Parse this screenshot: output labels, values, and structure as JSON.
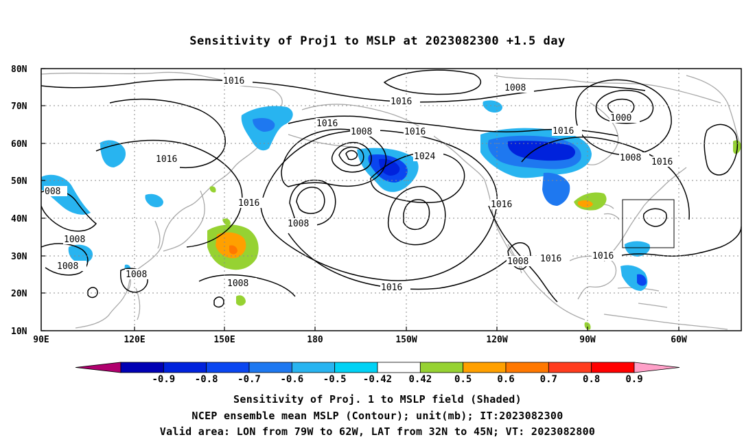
{
  "title": "Sensitivity of Proj1 to MSLP at 2023082300 +1.5 day",
  "map": {
    "lat_labels": [
      "80N",
      "70N",
      "60N",
      "50N",
      "40N",
      "30N",
      "20N",
      "10N"
    ],
    "lon_labels": [
      "90E",
      "120E",
      "150E",
      "180",
      "150W",
      "120W",
      "90W",
      "60W"
    ],
    "contour_labels": [
      "1016",
      "1008",
      "1016",
      "1016",
      "1008",
      "1016",
      "1016",
      "1000",
      "1008",
      "1016",
      "1024",
      "1016",
      "008",
      "1008",
      "1016",
      "1008",
      "1008",
      "1008",
      "1016",
      "1008",
      "1016",
      "1016",
      "1008",
      "1016"
    ],
    "valid_area": {
      "lon_min": "79W",
      "lon_max": "62W",
      "lat_min": "32N",
      "lat_max": "45N"
    }
  },
  "colorbar": {
    "labels": [
      "-0.9",
      "-0.8",
      "-0.7",
      "-0.6",
      "-0.5",
      "-0.42",
      "0.42",
      "0.5",
      "0.6",
      "0.7",
      "0.8",
      "0.9"
    ],
    "colors": [
      "#b0006e",
      "#0000b4",
      "#0022dc",
      "#0a46f0",
      "#1e78f0",
      "#28b4f0",
      "#00d2f5",
      "#ffffff",
      "#96d232",
      "#ffa000",
      "#ff7800",
      "#ff3c1e",
      "#ff0000",
      "#ffa0c8"
    ]
  },
  "captions": {
    "line1": "Sensitivity of Proj. 1 to MSLP field (Shaded)",
    "line2": "NCEP ensemble mean MSLP (Contour); unit(mb); IT:2023082300",
    "line3": "Valid area: LON from 79W to 62W, LAT from 32N to 45N; VT: 2023082800"
  }
}
